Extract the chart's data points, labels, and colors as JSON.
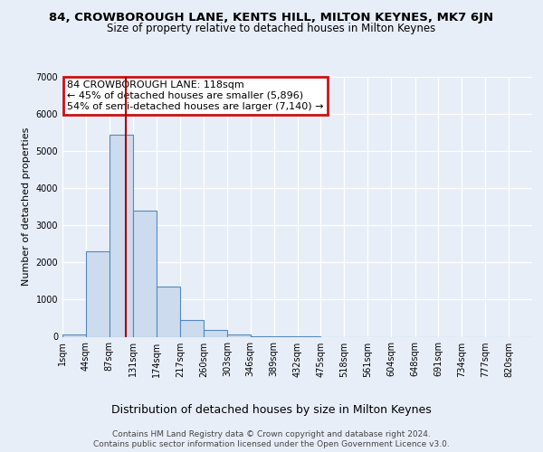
{
  "title": "84, CROWBOROUGH LANE, KENTS HILL, MILTON KEYNES, MK7 6JN",
  "subtitle": "Size of property relative to detached houses in Milton Keynes",
  "xlabel": "Distribution of detached houses by size in Milton Keynes",
  "ylabel": "Number of detached properties",
  "footer_line1": "Contains HM Land Registry data © Crown copyright and database right 2024.",
  "footer_line2": "Contains public sector information licensed under the Open Government Licence v3.0.",
  "annotation_line1": "84 CROWBOROUGH LANE: 118sqm",
  "annotation_line2": "← 45% of detached houses are smaller (5,896)",
  "annotation_line3": "54% of semi-detached houses are larger (7,140) →",
  "property_size": 118,
  "bar_color": "#ccdcee",
  "bar_edge_color": "#5588bb",
  "vline_color": "#aa0000",
  "annotation_box_edgecolor": "#cc1111",
  "background_color": "#e8eef8",
  "grid_color": "#ffffff",
  "bin_edges": [
    1,
    44,
    87,
    131,
    174,
    217,
    260,
    303,
    346,
    389,
    432,
    475,
    518,
    561,
    604,
    648,
    691,
    734,
    777,
    820,
    863
  ],
  "bar_heights": [
    50,
    2300,
    5450,
    3400,
    1350,
    450,
    175,
    50,
    10,
    3,
    1,
    0,
    0,
    0,
    0,
    0,
    0,
    0,
    0,
    0
  ],
  "ylim": [
    0,
    7000
  ],
  "yticks": [
    0,
    1000,
    2000,
    3000,
    4000,
    5000,
    6000,
    7000
  ],
  "title_fontsize": 9.5,
  "subtitle_fontsize": 8.5,
  "ylabel_fontsize": 8,
  "xlabel_fontsize": 9,
  "tick_fontsize": 7,
  "annotation_fontsize": 8,
  "footer_fontsize": 6.5
}
